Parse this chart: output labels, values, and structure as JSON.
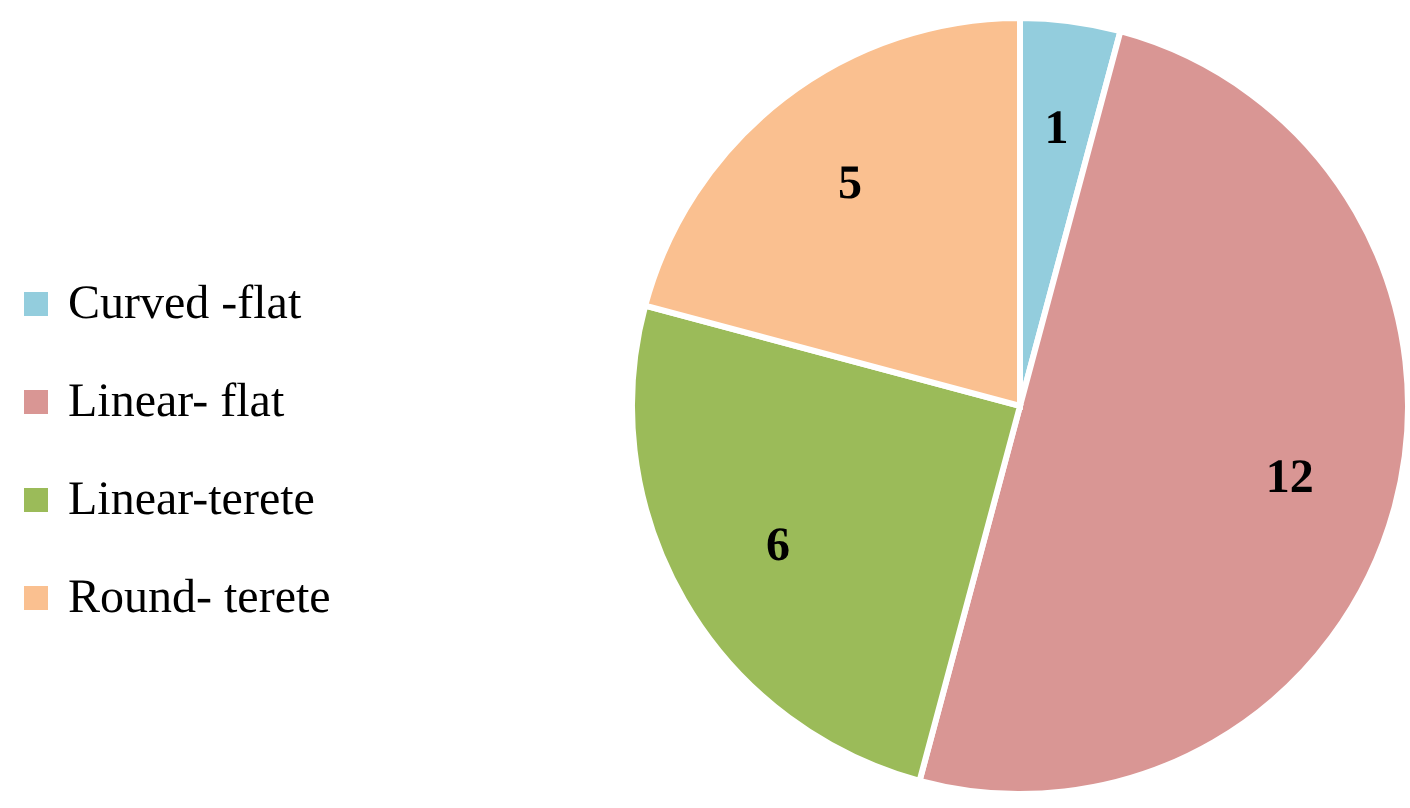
{
  "chart_data": {
    "type": "pie",
    "categories": [
      "Curved -flat",
      "Linear- flat",
      "Linear-terete",
      "Round- terete"
    ],
    "values": [
      1,
      12,
      6,
      5
    ],
    "colors": [
      "#93cddd",
      "#d99694",
      "#9bbb59",
      "#fac090"
    ],
    "data_labels": true,
    "legend": "left"
  }
}
